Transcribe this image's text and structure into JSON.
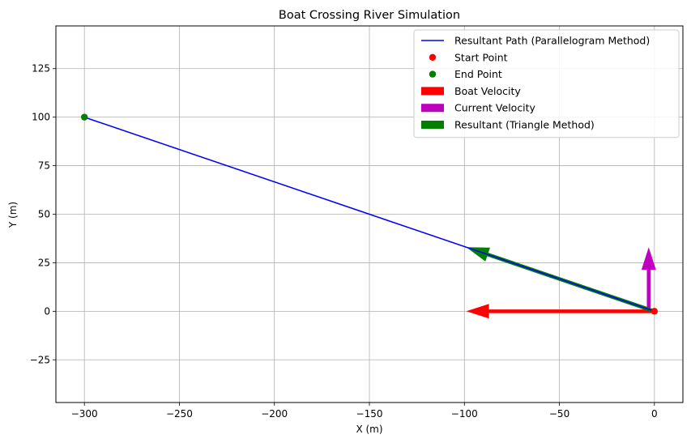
{
  "chart_data": {
    "type": "line",
    "title": "Boat Crossing River Simulation",
    "xlabel": "X (m)",
    "ylabel": "Y (m)",
    "xlim": [
      -315,
      15
    ],
    "ylim": [
      -47,
      147
    ],
    "xticks": [
      -300,
      -250,
      -200,
      -150,
      -100,
      -50,
      0
    ],
    "yticks": [
      -25,
      0,
      25,
      50,
      75,
      100,
      125
    ],
    "xtick_labels": [
      "−300",
      "−250",
      "−200",
      "−150",
      "−100",
      "−50",
      "0"
    ],
    "ytick_labels": [
      "−25",
      "0",
      "25",
      "50",
      "75",
      "100",
      "125"
    ],
    "grid": true,
    "legend_position": "top-right",
    "series": [
      {
        "name": "Resultant Path (Parallelogram Method)",
        "kind": "line",
        "color": "#0000ff",
        "x": [
          0,
          -300
        ],
        "y": [
          0,
          100
        ]
      },
      {
        "name": "Start Point",
        "kind": "scatter",
        "color": "#ff0000",
        "x": [
          0
        ],
        "y": [
          0
        ]
      },
      {
        "name": "End Point",
        "kind": "scatter",
        "color": "#008000",
        "x": [
          -300
        ],
        "y": [
          100
        ]
      },
      {
        "name": "Boat Velocity",
        "kind": "arrow",
        "color": "#ff0000",
        "x": 0,
        "y": 0,
        "dx": -99,
        "dy": 0
      },
      {
        "name": "Current Velocity",
        "kind": "arrow",
        "color": "#bf00bf",
        "x": -3,
        "y": 0,
        "dx": 0,
        "dy": 33
      },
      {
        "name": "Resultant (Triangle Method)",
        "kind": "arrow",
        "color": "#008000",
        "x": 0,
        "y": 0,
        "dx": -99,
        "dy": 33
      }
    ]
  }
}
